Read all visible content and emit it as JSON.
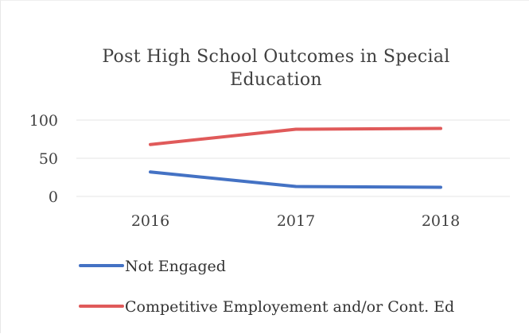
{
  "chart_data": {
    "type": "line",
    "title_lines": [
      "Post High School Outcomes in Special",
      "Education"
    ],
    "categories": [
      "2016",
      "2017",
      "2018"
    ],
    "series": [
      {
        "name": "Not Engaged",
        "values": [
          32,
          13,
          12
        ],
        "color": "#4472C4"
      },
      {
        "name": "Competitive Employement and/or Cont. Ed",
        "values": [
          68,
          88,
          89
        ],
        "color": "#E05A5A"
      }
    ],
    "yticks": [
      0,
      50,
      100
    ],
    "ylim": [
      0,
      100
    ],
    "grid": true,
    "legend_position": "bottom"
  }
}
